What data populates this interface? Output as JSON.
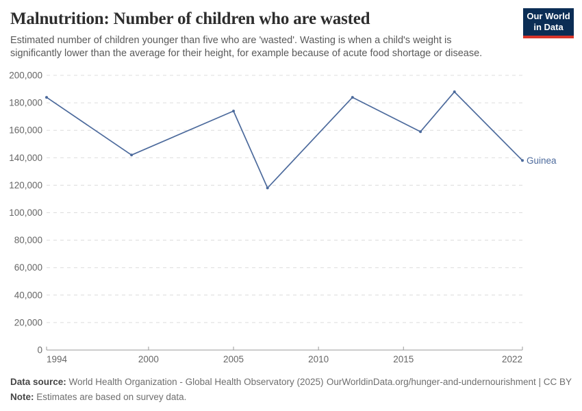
{
  "logo": {
    "line1": "Our World",
    "line2": "in Data",
    "bg_color": "#0b2d55",
    "stripe_color": "#d8352a"
  },
  "chart_data": {
    "type": "line",
    "title": "Malnutrition: Number of children who are wasted",
    "subtitle": "Estimated number of children younger than five who are 'wasted'. Wasting is when a child's weight is significantly lower than the average for their height, for example because of acute food shortage or disease.",
    "xlabel": "",
    "ylabel": "",
    "xlim": [
      1994,
      2022
    ],
    "ylim": [
      0,
      200000
    ],
    "x_ticks": [
      1994,
      2000,
      2005,
      2010,
      2015,
      2022
    ],
    "y_ticks": [
      0,
      20000,
      40000,
      60000,
      80000,
      100000,
      120000,
      140000,
      160000,
      180000,
      200000
    ],
    "grid": "horizontal-dashed",
    "legend_position": "end-of-line-label",
    "series": [
      {
        "name": "Guinea",
        "color": "#4C6A9C",
        "points": [
          [
            1994,
            184000
          ],
          [
            1999,
            142000
          ],
          [
            2005,
            174000
          ],
          [
            2007,
            118000
          ],
          [
            2012,
            184000
          ],
          [
            2016,
            159000
          ],
          [
            2018,
            188000
          ],
          [
            2022,
            138000
          ]
        ]
      }
    ],
    "colors": {
      "grid": "#dcdcdc",
      "axis": "#999999",
      "tick_label": "#666666"
    }
  },
  "footer": {
    "datasource_label": "Data source:",
    "datasource_text": "World Health Organization - Global Health Observatory (2025)",
    "link_text": "OurWorldinData.org/hunger-and-undernourishment | CC BY",
    "note_label": "Note:",
    "note_text": "Estimates are based on survey data."
  }
}
